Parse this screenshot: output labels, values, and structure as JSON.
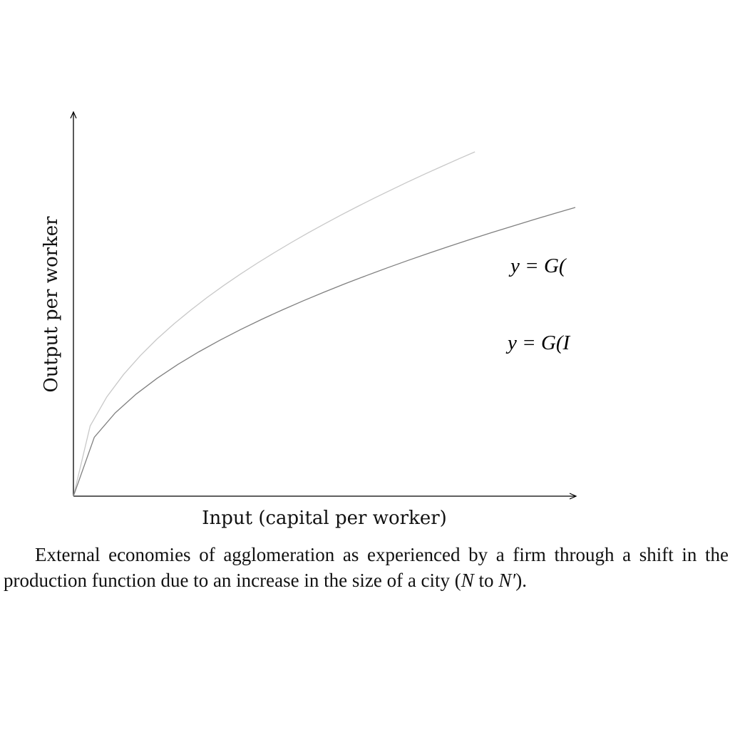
{
  "chart_data": {
    "type": "line",
    "xlabel": "Input (capital per worker)",
    "ylabel": "Output per worker",
    "xlim": [
      0,
      1
    ],
    "ylim": [
      0,
      1
    ],
    "series": [
      {
        "color": "#c8c8c8",
        "label": "y = G(",
        "exponent": 0.5,
        "scale": 1.0,
        "x_max": 0.8
      },
      {
        "color": "#808080",
        "label": "y = G(I",
        "exponent": 0.5,
        "scale": 0.75,
        "x_max": 1.0
      }
    ]
  },
  "caption": {
    "text_1": "External economies of agglomeration as experienced by a firm through a shift in the production function due to an increase in the size of a city (",
    "n": "N",
    "to": " to ",
    "n_prime": "N′",
    "end": ")."
  }
}
